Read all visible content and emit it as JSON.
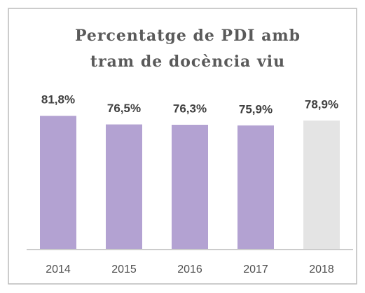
{
  "chart_data": {
    "type": "bar",
    "title": [
      "Percentatge de PDI amb",
      "tram de docència viu"
    ],
    "categories": [
      "2014",
      "2015",
      "2016",
      "2017",
      "2018"
    ],
    "values": [
      81.8,
      76.5,
      76.3,
      75.9,
      78.9
    ],
    "value_labels": [
      "81,8%",
      "76,5%",
      "76,3%",
      "75,9%",
      "78,9%"
    ],
    "colors": [
      "#b3a2d2",
      "#b3a2d2",
      "#b3a2d2",
      "#b3a2d2",
      "#e4e4e4"
    ],
    "ylim": [
      0,
      100
    ]
  }
}
